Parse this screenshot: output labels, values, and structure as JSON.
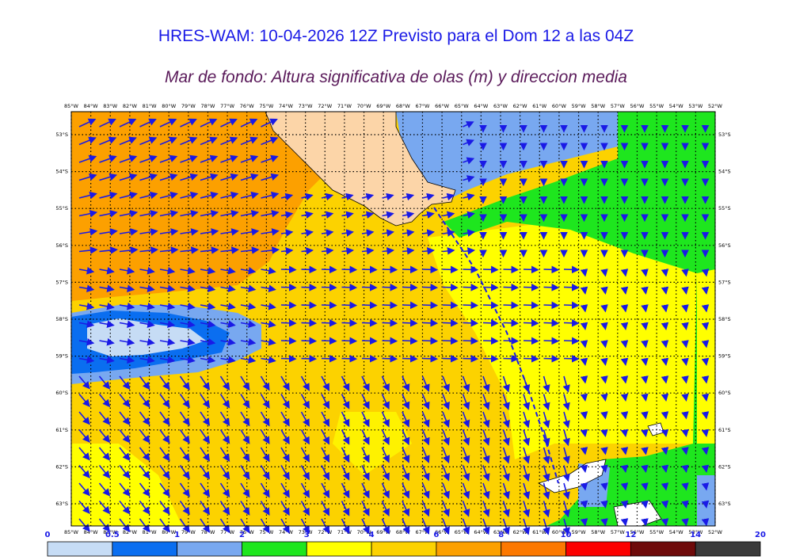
{
  "title": "HRES-WAM: 10-04-2026 12Z Previsto para el Dom 12 a las 04Z",
  "subtitle": "Mar de fondo: Altura significativa de olas (m) y direccion media",
  "map": {
    "lon_labels": [
      "85°W",
      "84°W",
      "83°W",
      "82°W",
      "81°W",
      "80°W",
      "79°W",
      "78°W",
      "77°W",
      "76°W",
      "75°W",
      "74°W",
      "73°W",
      "72°W",
      "71°W",
      "70°W",
      "69°W",
      "68°W",
      "67°W",
      "66°W",
      "65°W",
      "64°W",
      "63°W",
      "62°W",
      "61°W",
      "60°W",
      "59°W",
      "58°W",
      "57°W",
      "56°W",
      "55°W",
      "54°W",
      "53°W",
      "52°W"
    ],
    "lat_labels": [
      "53°S",
      "54°S",
      "55°S",
      "56°S",
      "57°S",
      "58°S",
      "59°S",
      "60°S",
      "61°S",
      "62°S",
      "63°S"
    ],
    "colors": {
      "land": "#fcd5a8",
      "grid": "#000000",
      "arrow": "#1a1ae6"
    }
  },
  "colorbar": {
    "ticks": [
      "0",
      "0.5",
      "1",
      "2",
      "3",
      "4",
      "6",
      "8",
      "10",
      "12",
      "14",
      "20"
    ],
    "colors": [
      "#c6dcf5",
      "#0a6ef0",
      "#78a8f0",
      "#1ee61e",
      "#ffff00",
      "#fcd200",
      "#fca000",
      "#fc7800",
      "#fc0000",
      "#6e0a0a",
      "#3a3a3a"
    ]
  }
}
